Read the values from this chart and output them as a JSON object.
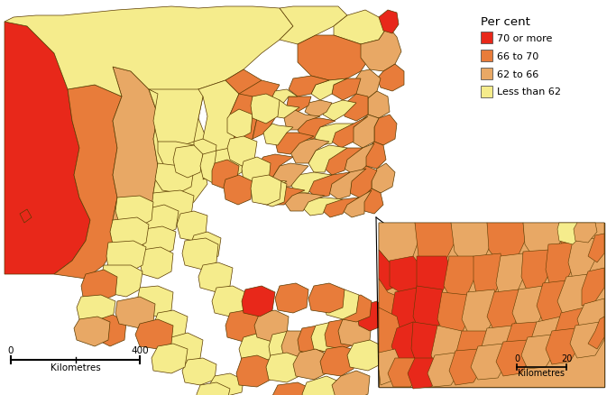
{
  "legend_title": "Per cent",
  "legend_items": [
    {
      "label": "70 or more",
      "color": "#e8281a"
    },
    {
      "label": "66 to 70",
      "color": "#e87c3a"
    },
    {
      "label": "62 to 66",
      "color": "#e8a865"
    },
    {
      "label": "Less than 62",
      "color": "#f5ec8c"
    }
  ],
  "background_color": "#ffffff",
  "map_edge_color": "#5a3a00",
  "map_edge_width": 0.5,
  "figure_width": 6.83,
  "figure_height": 4.39,
  "dpi": 100
}
